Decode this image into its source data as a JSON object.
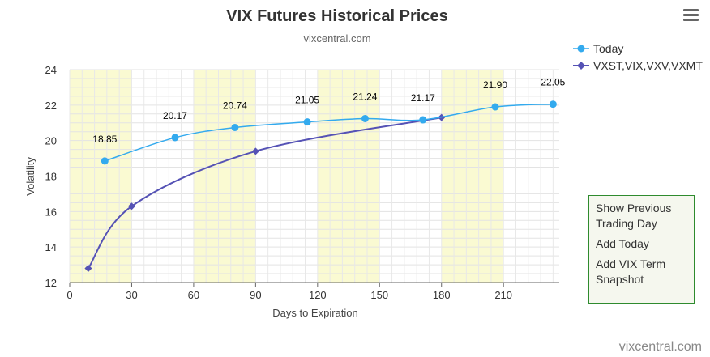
{
  "chart_data": {
    "type": "line",
    "title": "VIX Futures Historical Prices",
    "subtitle": "vixcentral.com",
    "xlabel": "Days to Expiration",
    "ylabel": "Volatility",
    "xlim": [
      0,
      237
    ],
    "ylim": [
      12,
      24
    ],
    "x_ticks": [
      0,
      30,
      60,
      90,
      120,
      150,
      180,
      210
    ],
    "y_ticks": [
      12,
      14,
      16,
      18,
      20,
      22,
      24
    ],
    "x_bands": [
      [
        0,
        30
      ],
      [
        60,
        90
      ],
      [
        120,
        150
      ],
      [
        180,
        210
      ]
    ],
    "grid": true,
    "legend_position": "top-right",
    "series": [
      {
        "name": "Today",
        "color": "#33aaee",
        "marker": "circle",
        "x": [
          17,
          51,
          80,
          115,
          143,
          171,
          206,
          234
        ],
        "values": [
          18.85,
          20.17,
          20.74,
          21.05,
          21.24,
          21.17,
          21.9,
          22.05
        ],
        "data_labels": [
          "18.85",
          "20.17",
          "20.74",
          "21.05",
          "21.24",
          "21.17",
          "21.90",
          "22.05"
        ]
      },
      {
        "name": "VXST,VIX,VXV,VXMT",
        "color": "#5552b5",
        "marker": "diamond",
        "x": [
          9,
          30,
          90,
          180
        ],
        "values": [
          12.8,
          16.3,
          19.4,
          21.3
        ]
      }
    ]
  },
  "menu": {
    "items": [
      "Show Previous Trading Day",
      "Add Today",
      "Add VIX Term Snapshot"
    ]
  },
  "credit": "vixcentral.com"
}
